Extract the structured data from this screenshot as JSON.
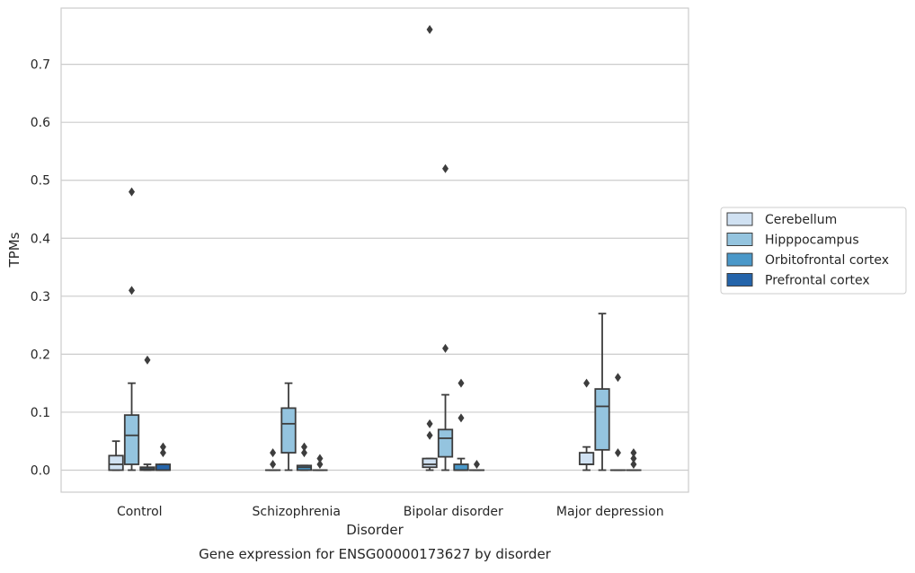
{
  "caption": "Gene expression for ENSG00000173627 by disorder",
  "chart_data": {
    "type": "boxplot",
    "title": "",
    "xlabel": "Disorder",
    "ylabel": "TPMs",
    "categories": [
      "Control",
      "Schizophrenia",
      "Bipolar disorder",
      "Major depression"
    ],
    "ylim": [
      -0.038,
      0.797
    ],
    "yticks": [
      0.0,
      0.1,
      0.2,
      0.3,
      0.4,
      0.5,
      0.6,
      0.7
    ],
    "ytick_labels": [
      "0.0",
      "0.1",
      "0.2",
      "0.3",
      "0.4",
      "0.5",
      "0.6",
      "0.7"
    ],
    "grid": "horizontal",
    "legend_position": "right",
    "series": [
      {
        "name": "Cerebellum",
        "color": "#d0e1f2",
        "boxes": [
          {
            "whislo": 0.0,
            "q1": 0.0,
            "med": 0.01,
            "q3": 0.025,
            "whishi": 0.05,
            "fliers": []
          },
          {
            "whislo": 0.0,
            "q1": 0.0,
            "med": 0.0,
            "q3": 0.0,
            "whishi": 0.0,
            "fliers": [
              0.01,
              0.03
            ]
          },
          {
            "whislo": 0.0,
            "q1": 0.005,
            "med": 0.01,
            "q3": 0.02,
            "whishi": 0.02,
            "fliers": [
              0.06,
              0.08,
              0.76
            ]
          },
          {
            "whislo": 0.0,
            "q1": 0.01,
            "med": 0.01,
            "q3": 0.03,
            "whishi": 0.04,
            "fliers": [
              0.15
            ]
          }
        ]
      },
      {
        "name": "Hipppocampus",
        "color": "#94c4df",
        "boxes": [
          {
            "whislo": 0.0,
            "q1": 0.01,
            "med": 0.06,
            "q3": 0.095,
            "whishi": 0.15,
            "fliers": [
              0.31,
              0.48
            ]
          },
          {
            "whislo": 0.0,
            "q1": 0.03,
            "med": 0.08,
            "q3": 0.107,
            "whishi": 0.15,
            "fliers": []
          },
          {
            "whislo": 0.0,
            "q1": 0.023,
            "med": 0.055,
            "q3": 0.07,
            "whishi": 0.13,
            "fliers": [
              0.21,
              0.52
            ]
          },
          {
            "whislo": 0.0,
            "q1": 0.035,
            "med": 0.11,
            "q3": 0.14,
            "whishi": 0.27,
            "fliers": []
          }
        ]
      },
      {
        "name": "Orbitofrontal cortex",
        "color": "#4a98c9",
        "boxes": [
          {
            "whislo": 0.0,
            "q1": 0.0,
            "med": 0.002,
            "q3": 0.005,
            "whishi": 0.01,
            "fliers": [
              0.19
            ]
          },
          {
            "whislo": 0.0,
            "q1": 0.0,
            "med": 0.005,
            "q3": 0.008,
            "whishi": 0.008,
            "fliers": [
              0.03,
              0.04
            ]
          },
          {
            "whislo": 0.0,
            "q1": 0.0,
            "med": 0.0,
            "q3": 0.01,
            "whishi": 0.02,
            "fliers": [
              0.09,
              0.15
            ]
          },
          {
            "whislo": 0.0,
            "q1": 0.0,
            "med": 0.0,
            "q3": 0.0,
            "whishi": 0.0,
            "fliers": [
              0.03,
              0.16
            ]
          }
        ]
      },
      {
        "name": "Prefrontal cortex",
        "color": "#2464aa",
        "boxes": [
          {
            "whislo": 0.0,
            "q1": 0.0,
            "med": 0.0,
            "q3": 0.01,
            "whishi": 0.01,
            "fliers": [
              0.03,
              0.04
            ]
          },
          {
            "whislo": 0.0,
            "q1": 0.0,
            "med": 0.0,
            "q3": 0.0,
            "whishi": 0.0,
            "fliers": [
              0.01,
              0.02
            ]
          },
          {
            "whislo": 0.0,
            "q1": 0.0,
            "med": 0.0,
            "q3": 0.0,
            "whishi": 0.0,
            "fliers": [
              0.01
            ]
          },
          {
            "whislo": 0.0,
            "q1": 0.0,
            "med": 0.0,
            "q3": 0.0,
            "whishi": 0.0,
            "fliers": [
              0.01,
              0.02,
              0.03
            ]
          }
        ]
      }
    ]
  }
}
